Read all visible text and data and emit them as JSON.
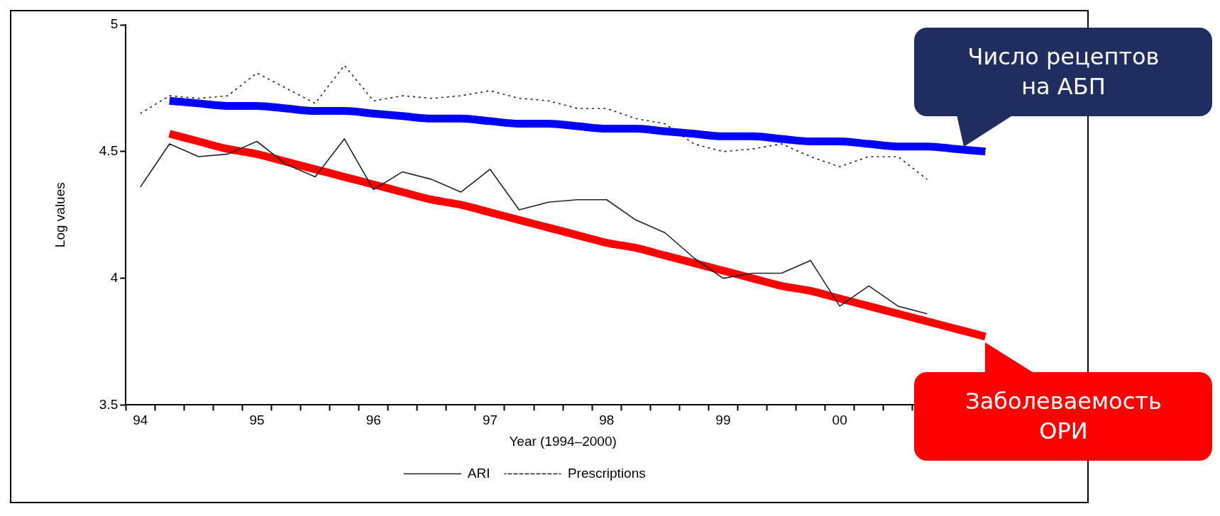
{
  "chart_data": {
    "type": "line",
    "xlabel": "Year (1994–2000)",
    "ylabel": "Log values",
    "legend": "bottom",
    "marker": "none",
    "categories": [
      "94",
      null,
      null,
      null,
      "95",
      null,
      null,
      null,
      "96",
      null,
      null,
      null,
      "97",
      null,
      null,
      null,
      "98",
      null,
      null,
      null,
      "99",
      null,
      null,
      null,
      "00",
      null,
      null,
      null,
      null,
      null
    ],
    "ylim": [
      3.5,
      5
    ],
    "yticks": [
      3.5,
      4,
      4.5,
      5
    ],
    "series": [
      {
        "name": "ARI",
        "color": "#222222",
        "line_style": "solid",
        "values": [
          4.36,
          4.53,
          4.48,
          4.49,
          4.54,
          4.45,
          4.4,
          4.55,
          4.35,
          4.42,
          4.39,
          4.34,
          4.43,
          4.27,
          4.3,
          4.31,
          4.31,
          4.23,
          4.18,
          4.08,
          4.0,
          4.02,
          4.02,
          4.07,
          3.89,
          3.97,
          3.89,
          3.86,
          null,
          null
        ]
      },
      {
        "name": "Prescriptions",
        "color": "#222222",
        "line_style": "dotted",
        "values": [
          4.65,
          4.72,
          4.71,
          4.72,
          4.81,
          4.75,
          4.69,
          4.84,
          4.7,
          4.72,
          4.71,
          4.72,
          4.74,
          4.71,
          4.7,
          4.67,
          4.67,
          4.63,
          4.61,
          4.53,
          4.5,
          4.51,
          4.53,
          4.48,
          4.44,
          4.48,
          4.48,
          4.39,
          null,
          null
        ]
      },
      {
        "type": "line",
        "color": "#0000ff",
        "line_style": "solid",
        "values": [
          null,
          4.7,
          4.69,
          4.68,
          4.68,
          4.67,
          4.66,
          4.66,
          4.65,
          4.64,
          4.63,
          4.63,
          4.62,
          4.61,
          4.61,
          4.6,
          4.59,
          4.59,
          4.58,
          4.57,
          4.56,
          4.56,
          4.55,
          4.54,
          4.54,
          4.53,
          4.52,
          4.52,
          4.51,
          4.5
        ]
      },
      {
        "type": "line",
        "color": "#ff0000",
        "line_style": "solid",
        "values": [
          null,
          4.57,
          4.54,
          4.51,
          4.49,
          4.46,
          4.43,
          4.4,
          4.37,
          4.34,
          4.31,
          4.29,
          4.26,
          4.23,
          4.2,
          4.17,
          4.14,
          4.12,
          4.09,
          4.06,
          4.03,
          4.0,
          3.97,
          3.95,
          3.92,
          3.89,
          3.86,
          3.83,
          3.8,
          3.77
        ]
      }
    ],
    "annotations": [
      "Число рецептов\nна АБП",
      "Заболеваемость\nОРИ"
    ]
  }
}
